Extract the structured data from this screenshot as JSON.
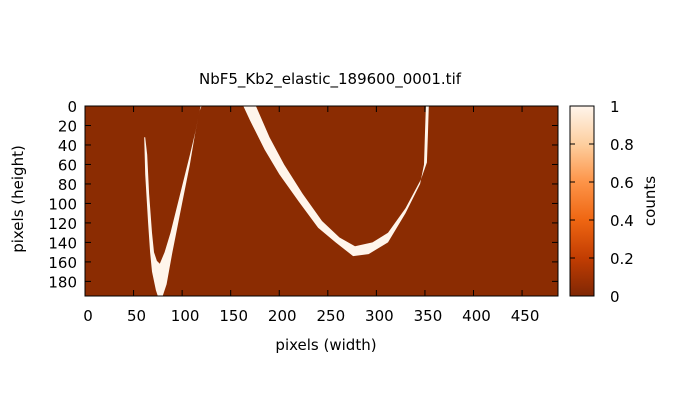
{
  "chart_data": {
    "type": "heatmap",
    "title": "NbF5_Kb2_elastic_189600_0001.tif",
    "xlabel": "pixels (width)",
    "ylabel": "pixels (height)",
    "colorbar_label": "counts",
    "xlim": [
      0,
      487
    ],
    "ylim": [
      0,
      195
    ],
    "y_axis_inverted": true,
    "x_ticks": [
      0,
      50,
      100,
      150,
      200,
      250,
      300,
      350,
      400,
      450
    ],
    "y_ticks": [
      0,
      20,
      40,
      60,
      80,
      100,
      120,
      140,
      160,
      180
    ],
    "colorbar_range": [
      0,
      1
    ],
    "colorbar_ticks": [
      0,
      0.2,
      0.4,
      0.6,
      0.8,
      1
    ],
    "colors": {
      "low": "#8b2c02",
      "mid": "#f06c14",
      "high": "#fff5eb"
    },
    "background_value": 0,
    "arc_value": 1,
    "arcs": [
      {
        "name": "left-arc",
        "outer_edge": [
          [
            61,
            32
          ],
          [
            62,
            70
          ],
          [
            65,
            120
          ],
          [
            67,
            150
          ],
          [
            69,
            170
          ],
          [
            73,
            189
          ],
          [
            75,
            195
          ],
          [
            80,
            195
          ],
          [
            84,
            183
          ],
          [
            90,
            150
          ],
          [
            100,
            100
          ],
          [
            108,
            60
          ],
          [
            113,
            30
          ],
          [
            118,
            5
          ],
          [
            120,
            0
          ],
          [
            124,
            0
          ]
        ],
        "inner_edge": [
          [
            119,
            0
          ],
          [
            114,
            25
          ],
          [
            108,
            50
          ],
          [
            98,
            90
          ],
          [
            88,
            130
          ],
          [
            82,
            150
          ],
          [
            77,
            162
          ],
          [
            74,
            159
          ],
          [
            71,
            150
          ],
          [
            69,
            130
          ],
          [
            66,
            90
          ],
          [
            64,
            50
          ],
          [
            62,
            32
          ]
        ]
      },
      {
        "name": "right-arc",
        "outer_edge": [
          [
            163,
            0
          ],
          [
            170,
            15
          ],
          [
            185,
            45
          ],
          [
            200,
            70
          ],
          [
            220,
            98
          ],
          [
            240,
            125
          ],
          [
            258,
            140
          ],
          [
            276,
            154
          ],
          [
            292,
            152
          ],
          [
            312,
            140
          ],
          [
            330,
            110
          ],
          [
            345,
            80
          ],
          [
            349,
            60
          ],
          [
            350,
            30
          ],
          [
            351,
            0
          ],
          [
            355,
            0
          ]
        ],
        "inner_edge": [
          [
            354,
            0
          ],
          [
            353,
            30
          ],
          [
            352,
            58
          ],
          [
            346,
            75
          ],
          [
            330,
            105
          ],
          [
            312,
            130
          ],
          [
            296,
            140
          ],
          [
            278,
            144
          ],
          [
            262,
            135
          ],
          [
            244,
            118
          ],
          [
            224,
            90
          ],
          [
            205,
            60
          ],
          [
            190,
            32
          ],
          [
            176,
            0
          ]
        ]
      }
    ]
  }
}
